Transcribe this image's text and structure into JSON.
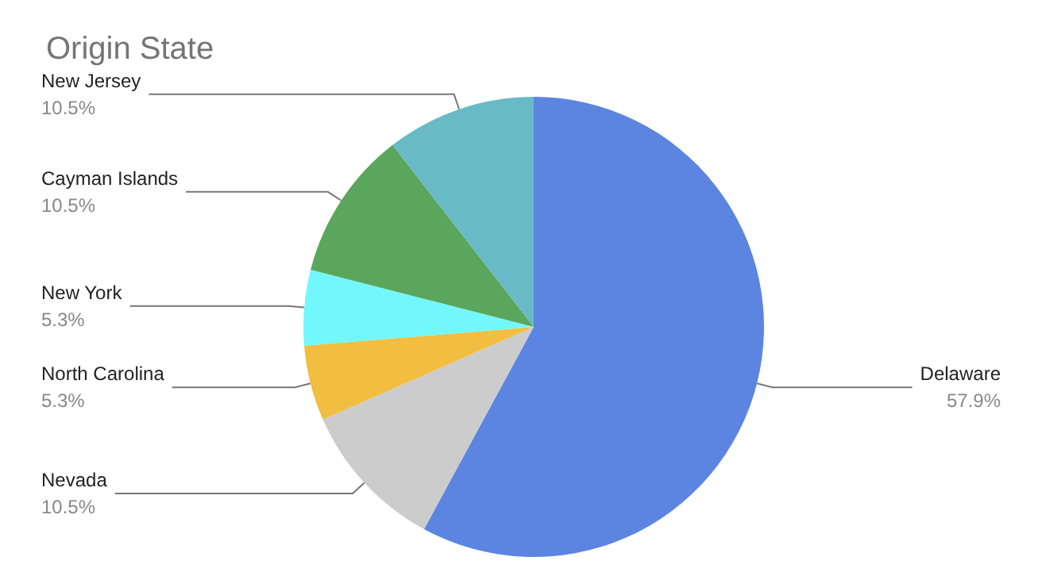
{
  "chart_data": {
    "type": "pie",
    "title": "Origin State",
    "categories": [
      "Delaware",
      "Nevada",
      "North Carolina",
      "New York",
      "Cayman Islands",
      "New Jersey"
    ],
    "values": [
      57.9,
      10.5,
      5.3,
      5.3,
      10.5,
      10.5
    ],
    "value_labels": [
      "57.9%",
      "10.5%",
      "5.3%",
      "5.3%",
      "10.5%",
      "10.5%"
    ],
    "colors": [
      "#5b85e0",
      "#cccccc",
      "#f1be42",
      "#72f8fc",
      "#5aa65c",
      "#68bac6"
    ],
    "legend": false
  }
}
